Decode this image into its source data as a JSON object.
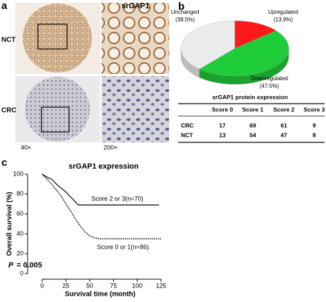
{
  "panels": {
    "a": "a",
    "b": "b",
    "c": "c"
  },
  "images": {
    "title": "srGAP1",
    "row_labels": [
      "NCT",
      "CRC"
    ],
    "magnifications": [
      "40×",
      "200×"
    ]
  },
  "chart_data": [
    {
      "type": "pie",
      "categories": [
        "Upregulated",
        "Downregulated",
        "Unchanged"
      ],
      "values": [
        13.9,
        47.5,
        38.5
      ],
      "value_labels": [
        "(13.9%)",
        "(47.5%)",
        "(38.5%)"
      ],
      "colors": [
        "#ff1a1a",
        "#1fcc3a",
        "#ebebeb"
      ]
    },
    {
      "type": "line",
      "title": "srGAP1 expression",
      "x_label": "Survival time (month)",
      "y_label": "Overall survival (%)",
      "xlim": [
        -8,
        130
      ],
      "ylim": [
        0,
        100
      ],
      "xticks": [
        0,
        25,
        50,
        75,
        100,
        125
      ],
      "yticks": [
        0,
        20,
        40,
        60,
        80,
        100
      ],
      "annotation": {
        "italic": "P",
        "text": "= 0.005"
      },
      "series": [
        {
          "name": "Score 2 or 3(n=70)",
          "color": "#000000",
          "dash": "solid",
          "x": [
            0,
            5,
            10,
            15,
            20,
            25,
            30,
            35,
            38,
            123
          ],
          "values": [
            100,
            97,
            95,
            90,
            86,
            82,
            77,
            72,
            69,
            69
          ]
        },
        {
          "name": "Score 0 or 1(n=86)",
          "color": "#000000",
          "dash": "dotted",
          "x": [
            0,
            5,
            10,
            15,
            20,
            25,
            30,
            35,
            40,
            45,
            50,
            55,
            60,
            125
          ],
          "values": [
            100,
            95,
            90,
            84,
            78,
            70,
            63,
            55,
            48,
            42,
            38,
            36,
            35,
            35
          ]
        }
      ]
    }
  ],
  "table": {
    "title": "srGAP1 protein expression",
    "columns": [
      "Score 0",
      "Score 1",
      "Score 2",
      "Score 3"
    ],
    "rows": [
      [
        "CRC",
        17,
        69,
        61,
        9
      ],
      [
        "NCT",
        13,
        54,
        47,
        8
      ]
    ]
  }
}
